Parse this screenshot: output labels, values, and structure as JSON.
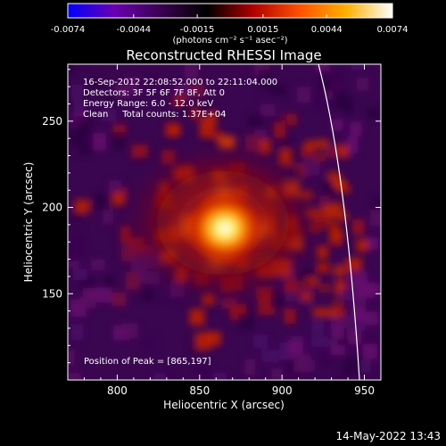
{
  "chart_data": {
    "type": "heatmap",
    "title": "Reconstructed RHESSI Image",
    "xlabel": "Heliocentric X (arcsec)",
    "ylabel": "Heliocentric Y (arcsec)",
    "xlim": [
      770,
      960
    ],
    "ylim": [
      100,
      283
    ],
    "x_ticks": [
      800,
      850,
      900,
      950
    ],
    "y_ticks": [
      150,
      200,
      250
    ],
    "colorbar": {
      "min": -0.0074,
      "max": 0.0074,
      "ticks": [
        "-0.0074",
        "-0.0044",
        "-0.0015",
        "0.0015",
        "0.0044",
        "0.0074"
      ],
      "unit_label": "(photons cm⁻² s⁻¹ asec⁻²)",
      "colormap": [
        "#0000ff",
        "#6a00b0",
        "#3a0050",
        "#000000",
        "#b00000",
        "#ff5000",
        "#ffb000",
        "#ffffff"
      ]
    },
    "info_lines": [
      "16-Sep-2012 22:08:52.000 to 22:11:04.000",
      "Detectors: 3F 5F 6F 7F 8F, Att 0",
      "Energy Range: 6.0 - 12.0 keV",
      "Clean     Total counts: 1.37E+04"
    ],
    "peak_label": "Position of Peak = [865,197]",
    "peak": [
      865,
      197
    ],
    "timestamp": "14-May-2022 13:43"
  }
}
